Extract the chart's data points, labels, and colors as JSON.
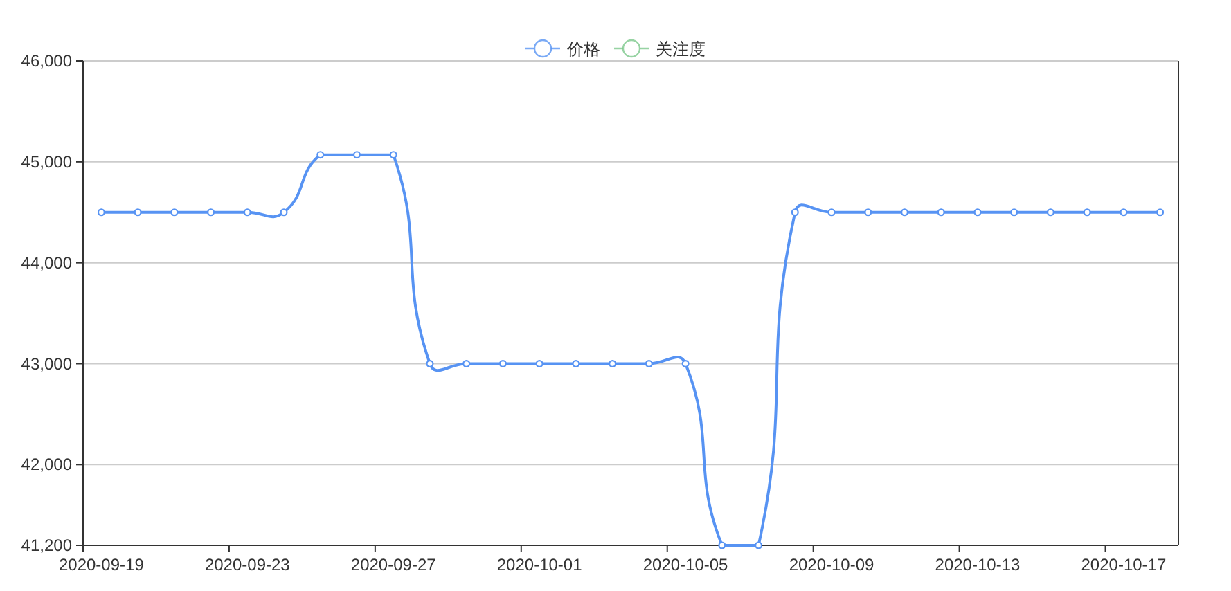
{
  "chart_data": {
    "type": "line",
    "categories": [
      "2020-09-19",
      null,
      null,
      null,
      "2020-09-23",
      null,
      null,
      null,
      "2020-09-27",
      null,
      null,
      null,
      "2020-10-01",
      null,
      null,
      null,
      "2020-10-05",
      null,
      null,
      null,
      "2020-10-09",
      null,
      null,
      null,
      "2020-10-13",
      null,
      null,
      null,
      "2020-10-17",
      null
    ],
    "series": [
      {
        "name": "价格",
        "color": "#5793f3",
        "values": [
          44500,
          44500,
          44500,
          44500,
          44500,
          44500,
          45070,
          45070,
          45070,
          43000,
          43000,
          43000,
          43000,
          43000,
          43000,
          43000,
          43000,
          41200,
          41200,
          44500,
          44500,
          44500,
          44500,
          44500,
          44500,
          44500,
          44500,
          44500,
          44500,
          44500
        ]
      },
      {
        "name": "关注度",
        "color": "#7dc88c",
        "values": [
          null,
          null,
          null,
          null,
          null,
          null,
          null,
          null,
          null,
          null,
          null,
          null,
          null,
          null,
          null,
          null,
          null,
          null,
          null,
          null,
          null,
          null,
          null,
          null,
          null,
          null,
          null,
          null,
          null,
          null
        ]
      }
    ],
    "ylim": [
      41200,
      46000
    ],
    "yticks": [
      {
        "value": 41200,
        "label": "41,200"
      },
      {
        "value": 42000,
        "label": "42,000"
      },
      {
        "value": 43000,
        "label": "43,000"
      },
      {
        "value": 44000,
        "label": "44,000"
      },
      {
        "value": 45000,
        "label": "45,000"
      },
      {
        "value": 46000,
        "label": "46,000"
      }
    ],
    "grid": "y",
    "legend": "top",
    "marker": "circle",
    "line_style": "solid"
  }
}
